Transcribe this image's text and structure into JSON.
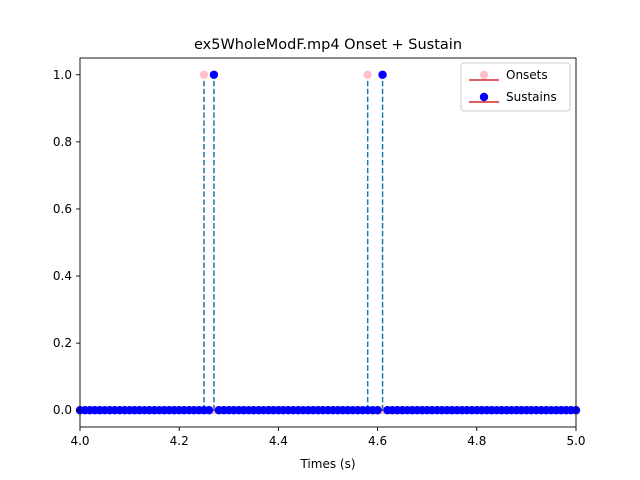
{
  "chart_data": {
    "type": "stem",
    "title": "ex5WholeModF.mp4 Onset + Sustain",
    "xlabel": "Times (s)",
    "ylabel": "",
    "xlim": [
      4.0,
      5.0
    ],
    "ylim": [
      -0.05,
      1.05
    ],
    "xticks": [
      "4.0",
      "4.2",
      "4.4",
      "4.6",
      "4.8",
      "5.0"
    ],
    "yticks": [
      "0.0",
      "0.2",
      "0.4",
      "0.6",
      "0.8",
      "1.0"
    ],
    "grid": false,
    "legend_position": "top-right",
    "series": [
      {
        "name": "Onsets",
        "color": "#ffc0cb",
        "baseline_color": "#d62728",
        "stem_color": "#1f77b4",
        "sample_start": 4.0,
        "sample_step": 0.01,
        "sample_count": 101,
        "nonzero": [
          {
            "x": 4.25,
            "y": 1.0
          },
          {
            "x": 4.58,
            "y": 1.0
          }
        ]
      },
      {
        "name": "Sustains",
        "color": "#0000ff",
        "baseline_color": "#d62728",
        "stem_color": "#1f77b4",
        "sample_start": 4.0,
        "sample_step": 0.01,
        "sample_count": 101,
        "nonzero": [
          {
            "x": 4.27,
            "y": 1.0
          },
          {
            "x": 4.61,
            "y": 1.0
          }
        ]
      }
    ]
  }
}
